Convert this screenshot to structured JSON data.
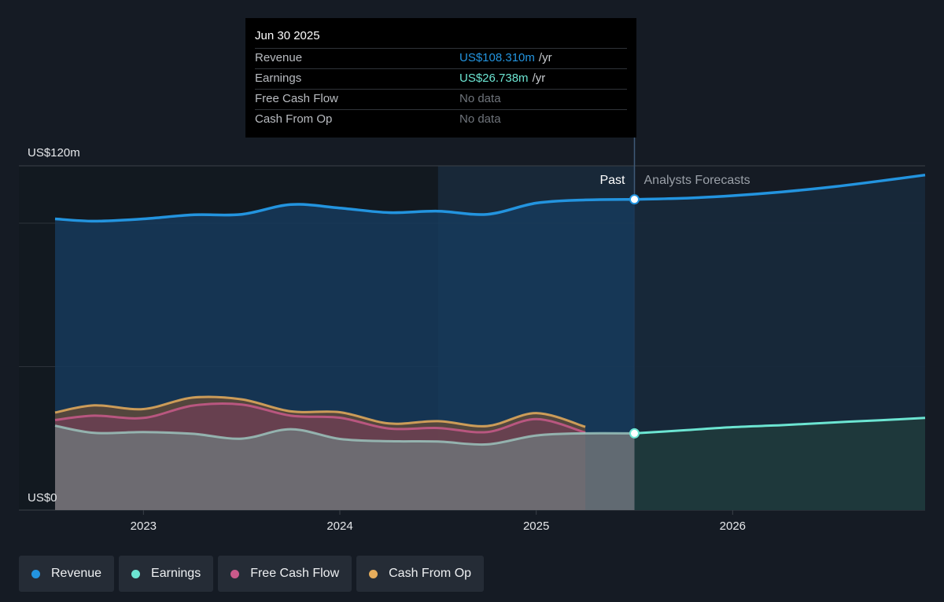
{
  "tooltip": {
    "date": "Jun 30 2025",
    "rows": [
      {
        "label": "Revenue",
        "value": "US$108.310m",
        "unit": "/yr",
        "color": "#2394df"
      },
      {
        "label": "Earnings",
        "value": "US$26.738m",
        "unit": "/yr",
        "color": "#6ce5d2"
      },
      {
        "label": "Free Cash Flow",
        "value": "No data",
        "unit": "",
        "color": ""
      },
      {
        "label": "Cash From Op",
        "value": "No data",
        "unit": "",
        "color": ""
      }
    ]
  },
  "regions": {
    "past_label": "Past",
    "forecast_label": "Analysts Forecasts"
  },
  "legend": [
    {
      "label": "Revenue",
      "color": "#2394df"
    },
    {
      "label": "Earnings",
      "color": "#6ce5d2"
    },
    {
      "label": "Free Cash Flow",
      "color": "#c95a8a"
    },
    {
      "label": "Cash From Op",
      "color": "#e6ad5c"
    }
  ],
  "chart_data": {
    "type": "area",
    "title": "",
    "xlabel": "",
    "ylabel": "",
    "y_tick_labels": [
      {
        "value": 120,
        "label": "US$120m"
      },
      {
        "value": 0,
        "label": "US$0"
      }
    ],
    "ylim": [
      0,
      120
    ],
    "xlim": [
      2022.55,
      2026.98
    ],
    "x_ticks": [
      2023,
      2024,
      2025,
      2026
    ],
    "gridlines": [
      100,
      50
    ],
    "highlight_range": [
      2024.5,
      2025.5
    ],
    "divider_x": 2025.5,
    "grid": true,
    "legend_position": "bottom-left",
    "series": [
      {
        "name": "Revenue",
        "color": "#2394df",
        "points": [
          [
            2022.55,
            101.5
          ],
          [
            2022.75,
            100.7
          ],
          [
            2023.0,
            101.5
          ],
          [
            2023.25,
            102.9
          ],
          [
            2023.5,
            103.1
          ],
          [
            2023.75,
            106.5
          ],
          [
            2024.0,
            105.3
          ],
          [
            2024.25,
            103.7
          ],
          [
            2024.5,
            104.2
          ],
          [
            2024.75,
            103.1
          ],
          [
            2025.0,
            107.0
          ],
          [
            2025.25,
            108.1
          ],
          [
            2025.5,
            108.31
          ]
        ],
        "forecast": [
          [
            2025.5,
            108.31
          ],
          [
            2025.75,
            108.7
          ],
          [
            2026.0,
            109.6
          ],
          [
            2026.25,
            110.9
          ],
          [
            2026.5,
            112.6
          ],
          [
            2026.75,
            114.7
          ],
          [
            2026.98,
            116.8
          ]
        ]
      },
      {
        "name": "Earnings",
        "color": "#6ce5d2",
        "points": [
          [
            2022.55,
            29.4
          ],
          [
            2022.75,
            26.9
          ],
          [
            2023.0,
            27.2
          ],
          [
            2023.25,
            26.6
          ],
          [
            2023.5,
            24.9
          ],
          [
            2023.75,
            28.2
          ],
          [
            2024.0,
            24.8
          ],
          [
            2024.25,
            24.0
          ],
          [
            2024.5,
            23.9
          ],
          [
            2024.75,
            22.9
          ],
          [
            2025.0,
            26.0
          ],
          [
            2025.25,
            26.74
          ],
          [
            2025.5,
            26.738
          ]
        ],
        "forecast": [
          [
            2025.5,
            26.738
          ],
          [
            2025.75,
            27.8
          ],
          [
            2026.0,
            28.9
          ],
          [
            2026.25,
            29.6
          ],
          [
            2026.5,
            30.5
          ],
          [
            2026.75,
            31.3
          ],
          [
            2026.98,
            32.1
          ]
        ]
      },
      {
        "name": "Free Cash Flow",
        "color": "#c95a8a",
        "points": [
          [
            2022.55,
            31.4
          ],
          [
            2022.75,
            32.9
          ],
          [
            2023.0,
            32.1
          ],
          [
            2023.25,
            36.4
          ],
          [
            2023.5,
            36.8
          ],
          [
            2023.75,
            32.9
          ],
          [
            2024.0,
            32.2
          ],
          [
            2024.25,
            28.4
          ],
          [
            2024.5,
            28.6
          ],
          [
            2024.75,
            27.2
          ],
          [
            2025.0,
            31.7
          ],
          [
            2025.25,
            27.0
          ]
        ]
      },
      {
        "name": "Cash From Op",
        "color": "#e6ad5c",
        "points": [
          [
            2022.55,
            34.0
          ],
          [
            2022.75,
            36.5
          ],
          [
            2023.0,
            35.2
          ],
          [
            2023.25,
            39.2
          ],
          [
            2023.5,
            38.6
          ],
          [
            2023.75,
            34.4
          ],
          [
            2024.0,
            34.1
          ],
          [
            2024.25,
            30.2
          ],
          [
            2024.5,
            31.0
          ],
          [
            2024.75,
            29.3
          ],
          [
            2025.0,
            33.8
          ],
          [
            2025.25,
            29.0
          ]
        ]
      }
    ]
  }
}
